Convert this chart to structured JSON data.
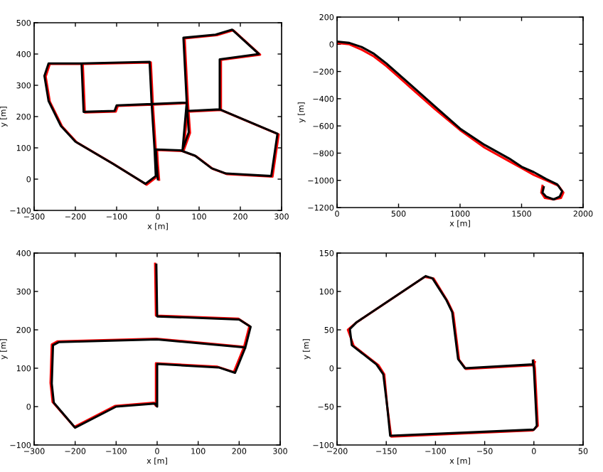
{
  "chart_data": [
    {
      "type": "line",
      "xlabel": "x [m]",
      "ylabel": "y [m]",
      "xlim": [
        -300,
        300
      ],
      "ylim": [
        -100,
        500
      ],
      "xticks": [
        {
          "value": -300,
          "label": "−300"
        },
        {
          "value": -200,
          "label": "−200"
        },
        {
          "value": -100,
          "label": "−100"
        },
        0,
        100,
        200,
        300
      ],
      "yticks": [
        {
          "value": -100,
          "label": "−100"
        },
        0,
        100,
        200,
        300,
        400,
        500
      ],
      "grid": false,
      "series": [
        {
          "color": "#ff0000",
          "x": [
            3,
            0,
            -2,
            58,
            93,
            133,
            168,
            278,
            288,
            293,
            153,
            78,
            153,
            153,
            248,
            183,
            143,
            65,
            73,
            78,
            63,
            73,
            -12,
            -97,
            -102,
            -177,
            -182,
            -17,
            -12,
            -5,
            -2,
            -27,
            -107,
            -197,
            -232,
            -262,
            -272,
            -262,
            -182
          ],
          "values": [
            -2,
            48,
            93,
            90,
            73,
            33,
            16,
            8,
            98,
            143,
            221,
            216,
            221,
            381,
            398,
            476,
            460,
            450,
            243,
            148,
            93,
            243,
            238,
            234,
            216,
            213,
            368,
            373,
            238,
            93,
            8,
            -18,
            48,
            118,
            168,
            248,
            328,
            368,
            368
          ]
        },
        {
          "color": "#000000",
          "x": [
            0,
            -3,
            -5,
            55,
            90,
            130,
            165,
            275,
            285,
            290,
            150,
            75,
            150,
            150,
            245,
            180,
            140,
            62,
            70,
            75,
            60,
            70,
            -15,
            -100,
            -105,
            -180,
            -185,
            -20,
            -15,
            -8,
            -5,
            -30,
            -110,
            -200,
            -235,
            -265,
            -275,
            -265,
            -185
          ],
          "values": [
            0,
            50,
            95,
            92,
            75,
            35,
            18,
            10,
            100,
            145,
            223,
            218,
            223,
            383,
            400,
            478,
            462,
            452,
            245,
            150,
            95,
            245,
            240,
            236,
            218,
            215,
            370,
            375,
            240,
            95,
            10,
            -15,
            50,
            120,
            170,
            250,
            330,
            370,
            370
          ]
        }
      ]
    },
    {
      "type": "line",
      "xlabel": "x [m]",
      "ylabel": "y [m]",
      "xlim": [
        0,
        2000
      ],
      "ylim": [
        -1200,
        200
      ],
      "xticks": [
        0,
        500,
        1000,
        1500,
        2000
      ],
      "yticks": [
        {
          "value": -1200,
          "label": "−1200"
        },
        {
          "value": -1000,
          "label": "−1000"
        },
        {
          "value": -800,
          "label": "−800"
        },
        {
          "value": -600,
          "label": "−600"
        },
        {
          "value": -400,
          "label": "−400"
        },
        {
          "value": -200,
          "label": "−200"
        },
        0,
        200
      ],
      "grid": false,
      "series": [
        {
          "color": "#ff0000",
          "x": [
            0,
            100,
            200,
            300,
            400,
            500,
            600,
            800,
            1000,
            1200,
            1400,
            1500,
            1600,
            1700,
            1800,
            1840,
            1820,
            1760,
            1690,
            1660,
            1670
          ],
          "values": [
            10,
            0,
            -40,
            -90,
            -160,
            -240,
            -320,
            -480,
            -630,
            -760,
            -860,
            -910,
            -960,
            -1000,
            -1040,
            -1090,
            -1130,
            -1140,
            -1130,
            -1090,
            -1040
          ]
        },
        {
          "color": "#000000",
          "x": [
            0,
            100,
            200,
            300,
            400,
            500,
            600,
            800,
            1000,
            1200,
            1400,
            1500,
            1600,
            1700,
            1790,
            1830,
            1810,
            1760,
            1700,
            1670,
            1680
          ],
          "values": [
            20,
            10,
            -20,
            -70,
            -140,
            -220,
            -300,
            -460,
            -620,
            -740,
            -840,
            -900,
            -940,
            -990,
            -1030,
            -1080,
            -1120,
            -1140,
            -1120,
            -1090,
            -1050
          ]
        }
      ]
    },
    {
      "type": "line",
      "xlabel": "x [m]",
      "ylabel": "y [m]",
      "xlim": [
        -300,
        300
      ],
      "ylim": [
        -100,
        400
      ],
      "xticks": [
        {
          "value": -300,
          "label": "−300"
        },
        {
          "value": -200,
          "label": "−200"
        },
        {
          "value": -100,
          "label": "−100"
        },
        0,
        100,
        200,
        300
      ],
      "yticks": [
        {
          "value": -100,
          "label": "−100"
        },
        0,
        100,
        200,
        300,
        400
      ],
      "grid": false,
      "series": [
        {
          "color": "#ff0000",
          "x": [
            -5,
            -3,
            198,
            225,
            212,
            187,
            147,
            -3,
            -3,
            -8,
            -102,
            -202,
            -255,
            -260,
            -257,
            -243,
            -3,
            212
          ],
          "values": [
            372,
            237,
            229,
            210,
            156,
            90,
            104,
            113,
            2,
            10,
            2,
            -53,
            12,
            62,
            162,
            170,
            177,
            156
          ]
        },
        {
          "color": "#000000",
          "x": [
            -2,
            0,
            200,
            228,
            215,
            190,
            150,
            0,
            0,
            -5,
            -100,
            -200,
            -252,
            -257,
            -254,
            -240,
            0,
            215
          ],
          "values": [
            370,
            235,
            227,
            208,
            154,
            88,
            102,
            111,
            0,
            8,
            0,
            -55,
            10,
            60,
            160,
            168,
            175,
            154
          ]
        }
      ]
    },
    {
      "type": "line",
      "xlabel": "x [m]",
      "ylabel": "y [m]",
      "xlim": [
        -200,
        50
      ],
      "ylim": [
        -100,
        150
      ],
      "xticks": [
        {
          "value": -200,
          "label": "−200"
        },
        {
          "value": -150,
          "label": "−150"
        },
        {
          "value": -100,
          "label": "−100"
        },
        {
          "value": -50,
          "label": "−50"
        },
        0,
        50
      ],
      "yticks": [
        {
          "value": -100,
          "label": "−100"
        },
        {
          "value": -50,
          "label": "−50"
        },
        0,
        50,
        100,
        150
      ],
      "grid": false,
      "series": [
        {
          "color": "#ff0000",
          "x": [
            0,
            1,
            4,
            -1,
            -145,
            -149,
            -152,
            -158,
            -183,
            -189,
            -181,
            -111,
            -102,
            -88,
            -82,
            -76,
            -69,
            0,
            1
          ],
          "values": [
            10,
            0,
            -75,
            -81,
            -89,
            -50,
            -8,
            4,
            29,
            50,
            59,
            119,
            117,
            88,
            72,
            11,
            -1,
            4,
            8
          ]
        },
        {
          "color": "#000000",
          "x": [
            -1,
            0,
            3,
            0,
            -146,
            -149,
            -153,
            -160,
            -185,
            -187,
            -180,
            -110,
            -103,
            -89,
            -83,
            -77,
            -70,
            -1,
            -1
          ],
          "values": [
            10,
            0,
            -75,
            -80,
            -88,
            -50,
            -8,
            5,
            30,
            51,
            60,
            120,
            117,
            89,
            73,
            12,
            0,
            5,
            9
          ]
        }
      ]
    }
  ]
}
